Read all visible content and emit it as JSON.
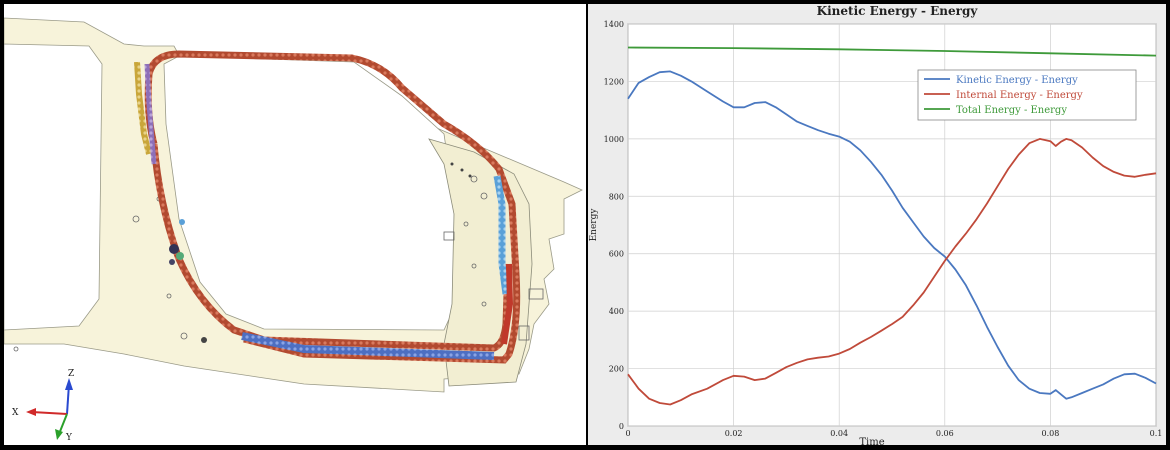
{
  "chart_data": {
    "type": "line",
    "title": "Kinetic Energy - Energy",
    "xlabel": "Time",
    "ylabel": "Energy",
    "xlim": [
      0,
      0.1
    ],
    "ylim": [
      0,
      1400
    ],
    "x_ticks": [
      "0",
      "0.02",
      "0.04",
      "0.06",
      "0.08",
      "0.1"
    ],
    "y_ticks": [
      "0",
      "200",
      "400",
      "600",
      "800",
      "1000",
      "1200",
      "1400"
    ],
    "grid": true,
    "legend_position": "top-right",
    "series": [
      {
        "name": "Kinetic Energy - Energy",
        "color": "#4a78c0",
        "x": [
          0,
          0.002,
          0.004,
          0.006,
          0.008,
          0.01,
          0.012,
          0.015,
          0.018,
          0.02,
          0.022,
          0.024,
          0.026,
          0.028,
          0.03,
          0.032,
          0.034,
          0.036,
          0.038,
          0.04,
          0.042,
          0.044,
          0.046,
          0.048,
          0.05,
          0.052,
          0.054,
          0.056,
          0.058,
          0.06,
          0.062,
          0.064,
          0.066,
          0.068,
          0.07,
          0.072,
          0.074,
          0.076,
          0.078,
          0.08,
          0.081,
          0.082,
          0.083,
          0.084,
          0.086,
          0.088,
          0.09,
          0.092,
          0.094,
          0.096,
          0.098,
          0.1
        ],
        "y": [
          1140,
          1195,
          1215,
          1232,
          1235,
          1220,
          1200,
          1165,
          1130,
          1110,
          1110,
          1125,
          1128,
          1110,
          1085,
          1060,
          1045,
          1030,
          1018,
          1008,
          990,
          960,
          920,
          875,
          820,
          760,
          710,
          660,
          620,
          590,
          545,
          490,
          420,
          345,
          275,
          210,
          160,
          130,
          115,
          112,
          125,
          110,
          95,
          100,
          115,
          130,
          145,
          165,
          180,
          182,
          168,
          148
        ]
      },
      {
        "name": "Internal Energy - Energy",
        "color": "#c04a3a",
        "x": [
          0,
          0.002,
          0.004,
          0.006,
          0.008,
          0.01,
          0.012,
          0.015,
          0.018,
          0.02,
          0.022,
          0.024,
          0.026,
          0.028,
          0.03,
          0.032,
          0.034,
          0.036,
          0.038,
          0.04,
          0.042,
          0.044,
          0.046,
          0.048,
          0.05,
          0.052,
          0.054,
          0.056,
          0.058,
          0.06,
          0.062,
          0.064,
          0.066,
          0.068,
          0.07,
          0.072,
          0.074,
          0.076,
          0.078,
          0.08,
          0.081,
          0.082,
          0.083,
          0.084,
          0.086,
          0.088,
          0.09,
          0.092,
          0.094,
          0.096,
          0.098,
          0.1
        ],
        "y": [
          180,
          130,
          95,
          80,
          75,
          90,
          110,
          130,
          160,
          175,
          172,
          160,
          165,
          185,
          205,
          220,
          232,
          238,
          242,
          252,
          268,
          290,
          310,
          332,
          355,
          380,
          420,
          465,
          520,
          575,
          625,
          670,
          720,
          775,
          835,
          895,
          945,
          985,
          1000,
          992,
          975,
          990,
          1000,
          995,
          970,
          935,
          905,
          885,
          872,
          868,
          875,
          880
        ]
      },
      {
        "name": "Total Energy - Energy",
        "color": "#3e9a3a",
        "x": [
          0,
          0.02,
          0.04,
          0.06,
          0.08,
          0.1
        ],
        "y": [
          1318,
          1316,
          1312,
          1306,
          1298,
          1290
        ]
      }
    ]
  },
  "axis_triad": {
    "x": "X",
    "y": "Y",
    "z": "Z"
  }
}
